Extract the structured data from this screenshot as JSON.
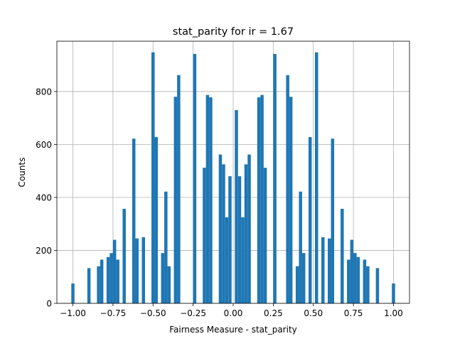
{
  "chart_data": {
    "type": "bar",
    "title": "stat_parity for ir = 1.67",
    "xlabel": "Fairness Measure - stat_parity",
    "ylabel": "Counts",
    "xlim": [
      -1.1,
      1.1
    ],
    "ylim": [
      0,
      990
    ],
    "xticks": [
      -1.0,
      -0.75,
      -0.5,
      -0.25,
      0.0,
      0.25,
      0.5,
      0.75,
      1.0
    ],
    "xtick_labels": [
      "−1.00",
      "−0.75",
      "−0.50",
      "−0.25",
      "0.00",
      "0.25",
      "0.50",
      "0.75",
      "1.00"
    ],
    "yticks": [
      0,
      200,
      400,
      600,
      800
    ],
    "ytick_labels": [
      "0",
      "200",
      "400",
      "600",
      "800"
    ],
    "grid": true,
    "bin_width": 0.02,
    "bar_color": "#1f77b4",
    "bins": [
      {
        "x": -1.0,
        "count": 75
      },
      {
        "x": -0.9,
        "count": 133
      },
      {
        "x": -0.84,
        "count": 140
      },
      {
        "x": -0.82,
        "count": 165
      },
      {
        "x": -0.78,
        "count": 175
      },
      {
        "x": -0.76,
        "count": 190
      },
      {
        "x": -0.74,
        "count": 240
      },
      {
        "x": -0.72,
        "count": 165
      },
      {
        "x": -0.68,
        "count": 357
      },
      {
        "x": -0.62,
        "count": 622
      },
      {
        "x": -0.6,
        "count": 245
      },
      {
        "x": -0.56,
        "count": 250
      },
      {
        "x": -0.5,
        "count": 948
      },
      {
        "x": -0.48,
        "count": 628
      },
      {
        "x": -0.44,
        "count": 190
      },
      {
        "x": -0.42,
        "count": 422
      },
      {
        "x": -0.4,
        "count": 140
      },
      {
        "x": -0.36,
        "count": 780
      },
      {
        "x": -0.34,
        "count": 862
      },
      {
        "x": -0.24,
        "count": 942
      },
      {
        "x": -0.18,
        "count": 512
      },
      {
        "x": -0.16,
        "count": 787
      },
      {
        "x": -0.14,
        "count": 778
      },
      {
        "x": -0.08,
        "count": 562
      },
      {
        "x": -0.06,
        "count": 525
      },
      {
        "x": -0.04,
        "count": 325
      },
      {
        "x": -0.02,
        "count": 480
      },
      {
        "x": 0.02,
        "count": 730
      },
      {
        "x": 0.04,
        "count": 480
      },
      {
        "x": 0.06,
        "count": 325
      },
      {
        "x": 0.08,
        "count": 525
      },
      {
        "x": 0.1,
        "count": 562
      },
      {
        "x": 0.16,
        "count": 778
      },
      {
        "x": 0.18,
        "count": 787
      },
      {
        "x": 0.2,
        "count": 512
      },
      {
        "x": 0.26,
        "count": 942
      },
      {
        "x": 0.34,
        "count": 862
      },
      {
        "x": 0.36,
        "count": 780
      },
      {
        "x": 0.4,
        "count": 140
      },
      {
        "x": 0.42,
        "count": 422
      },
      {
        "x": 0.44,
        "count": 190
      },
      {
        "x": 0.48,
        "count": 628
      },
      {
        "x": 0.52,
        "count": 948
      },
      {
        "x": 0.56,
        "count": 250
      },
      {
        "x": 0.6,
        "count": 245
      },
      {
        "x": 0.62,
        "count": 622
      },
      {
        "x": 0.68,
        "count": 357
      },
      {
        "x": 0.72,
        "count": 165
      },
      {
        "x": 0.74,
        "count": 240
      },
      {
        "x": 0.76,
        "count": 190
      },
      {
        "x": 0.78,
        "count": 175
      },
      {
        "x": 0.82,
        "count": 165
      },
      {
        "x": 0.84,
        "count": 140
      },
      {
        "x": 0.9,
        "count": 133
      },
      {
        "x": 1.0,
        "count": 75
      }
    ]
  }
}
